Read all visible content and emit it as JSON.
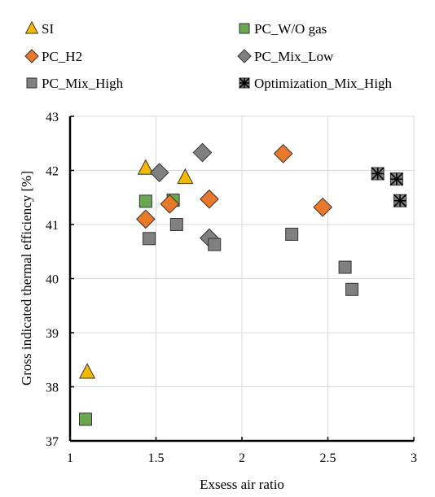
{
  "chart_data": {
    "type": "scatter",
    "xlabel": "Exsess air ratio",
    "ylabel": "Gross indicated thermal efficiency [%]",
    "xlim": [
      1,
      3
    ],
    "ylim": [
      37,
      43
    ],
    "xticks": [
      "1",
      "1.5",
      "2",
      "2.5",
      "3"
    ],
    "yticks": [
      "37",
      "38",
      "39",
      "40",
      "41",
      "42",
      "43"
    ],
    "grid": true,
    "legend_position": "top",
    "series": [
      {
        "name": "SI",
        "marker": "triangle",
        "color": "#F5B800",
        "points": [
          [
            1.1,
            38.27
          ],
          [
            1.44,
            42.04
          ],
          [
            1.67,
            41.87
          ]
        ]
      },
      {
        "name": "PC_W/O gas",
        "marker": "square",
        "color": "#6AA84F",
        "points": [
          [
            1.09,
            37.4
          ],
          [
            1.44,
            41.43
          ],
          [
            1.6,
            41.45
          ]
        ]
      },
      {
        "name": "PC_H2",
        "marker": "diamond",
        "color": "#E8782A",
        "points": [
          [
            1.44,
            41.1
          ],
          [
            1.58,
            41.38
          ],
          [
            1.81,
            41.47
          ],
          [
            2.24,
            42.31
          ],
          [
            2.47,
            41.32
          ]
        ]
      },
      {
        "name": "PC_Mix_Low",
        "marker": "diamond",
        "color": "#808080",
        "points": [
          [
            1.52,
            41.96
          ],
          [
            1.77,
            42.33
          ],
          [
            1.81,
            40.75
          ]
        ]
      },
      {
        "name": "PC_Mix_High",
        "marker": "square",
        "color": "#808080",
        "points": [
          [
            1.46,
            40.74
          ],
          [
            1.62,
            41.0
          ],
          [
            1.84,
            40.63
          ],
          [
            2.29,
            40.82
          ],
          [
            2.6,
            40.21
          ],
          [
            2.64,
            39.8
          ]
        ]
      },
      {
        "name": "Optimization_Mix_High",
        "marker": "star-square",
        "color": "#808080",
        "points": [
          [
            2.79,
            41.94
          ],
          [
            2.9,
            41.84
          ],
          [
            2.92,
            41.44
          ]
        ]
      }
    ]
  }
}
